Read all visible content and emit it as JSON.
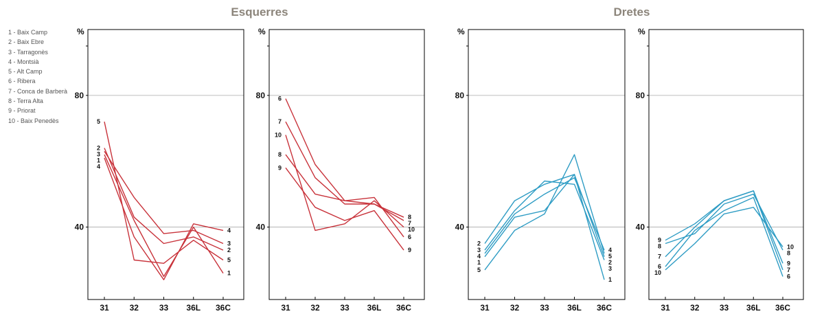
{
  "legend": [
    "1 - Baix Camp",
    "2 - Baix Ebre",
    "3 - Tarragonès",
    "4 - Montsià",
    "5 - Alt Camp",
    "6 - Ribera",
    "7 - Conca de Barberà",
    "8 - Terra Alta",
    "9 - Priorat",
    "10 - Baix Penedès"
  ],
  "groups": [
    {
      "title": "Esquerres"
    },
    {
      "title": "Dretes"
    }
  ],
  "colors": {
    "left": "#c8323a",
    "right": "#2e9cc4",
    "grid": "#aaaaaa",
    "text": "#8c857b"
  },
  "chart_data": [
    {
      "type": "line",
      "group": "Esquerres",
      "categories": [
        "31",
        "32",
        "33",
        "36L",
        "36C"
      ],
      "ylabel": "%",
      "yticks": [
        40,
        80
      ],
      "ylim": [
        18,
        100
      ],
      "series": [
        {
          "label": "1",
          "values": [
            62,
            42,
            25,
            40,
            26
          ]
        },
        {
          "label": "2",
          "values": [
            64,
            43,
            35,
            37,
            33
          ]
        },
        {
          "label": "3",
          "values": [
            63,
            49,
            38,
            39,
            35
          ]
        },
        {
          "label": "4",
          "values": [
            61,
            37,
            24,
            41,
            39
          ]
        },
        {
          "label": "5",
          "values": [
            72,
            30,
            29,
            36,
            30
          ]
        }
      ]
    },
    {
      "type": "line",
      "group": "Esquerres",
      "categories": [
        "31",
        "32",
        "33",
        "36L",
        "36C"
      ],
      "ylabel": "%",
      "yticks": [
        40,
        80
      ],
      "ylim": [
        18,
        100
      ],
      "series": [
        {
          "label": "6",
          "values": [
            79,
            59,
            48,
            49,
            37
          ]
        },
        {
          "label": "7",
          "values": [
            72,
            55,
            47,
            47,
            42
          ]
        },
        {
          "label": "8",
          "values": [
            62,
            50,
            48,
            47,
            43
          ]
        },
        {
          "label": "9",
          "values": [
            58,
            46,
            42,
            45,
            33
          ]
        },
        {
          "label": "10",
          "values": [
            68,
            39,
            41,
            48,
            40
          ]
        }
      ]
    },
    {
      "type": "line",
      "group": "Dretes",
      "categories": [
        "31",
        "32",
        "33",
        "36L",
        "36C"
      ],
      "ylabel": "%",
      "yticks": [
        40,
        80
      ],
      "ylim": [
        18,
        100
      ],
      "series": [
        {
          "label": "1",
          "values": [
            31,
            43,
            45,
            56,
            24
          ]
        },
        {
          "label": "2",
          "values": [
            35,
            48,
            53,
            56,
            31
          ]
        },
        {
          "label": "3",
          "values": [
            33,
            45,
            54,
            53,
            30
          ]
        },
        {
          "label": "4",
          "values": [
            32,
            44,
            50,
            55,
            33
          ]
        },
        {
          "label": "5",
          "values": [
            27,
            39,
            44,
            62,
            32
          ]
        }
      ]
    },
    {
      "type": "line",
      "group": "Dretes",
      "categories": [
        "31",
        "32",
        "33",
        "36L",
        "36C"
      ],
      "ylabel": "%",
      "yticks": [
        40,
        80
      ],
      "ylim": [
        18,
        100
      ],
      "series": [
        {
          "label": "6",
          "values": [
            28,
            39,
            45,
            49,
            25
          ]
        },
        {
          "label": "7",
          "values": [
            31,
            40,
            48,
            51,
            27
          ]
        },
        {
          "label": "8",
          "values": [
            35,
            38,
            47,
            50,
            33
          ]
        },
        {
          "label": "9",
          "values": [
            36,
            41,
            48,
            51,
            29
          ]
        },
        {
          "label": "10",
          "values": [
            27,
            35,
            44,
            46,
            34
          ]
        }
      ]
    }
  ]
}
